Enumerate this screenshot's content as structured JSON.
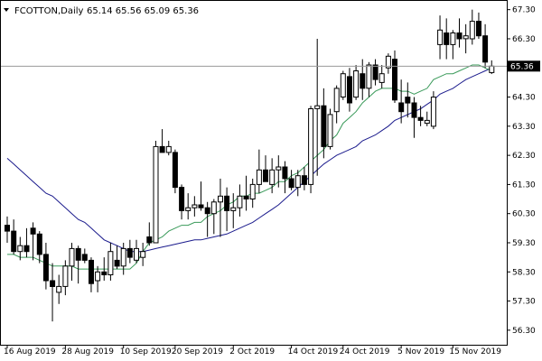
{
  "header": {
    "symbol": "FCOTTON,Daily",
    "ohlc": "65.14 65.56 65.09 65.36"
  },
  "chart_data": {
    "type": "candlestick",
    "symbol": "FCOTTON",
    "timeframe": "Daily",
    "ylim": [
      55.8,
      67.6
    ],
    "y_ticks": [
      {
        "value": 67.3,
        "label": "67.30"
      },
      {
        "value": 66.3,
        "label": "66.30"
      },
      {
        "value": 64.3,
        "label": "64.30"
      },
      {
        "value": 63.3,
        "label": "63.30"
      },
      {
        "value": 62.3,
        "label": "62.30"
      },
      {
        "value": 61.3,
        "label": "61.30"
      },
      {
        "value": 60.3,
        "label": "60.30"
      },
      {
        "value": 59.3,
        "label": "59.30"
      },
      {
        "value": 58.3,
        "label": "58.30"
      },
      {
        "value": 57.3,
        "label": "57.30"
      },
      {
        "value": 56.3,
        "label": "56.30"
      }
    ],
    "x_ticks": [
      {
        "index": 0,
        "label": "16 Aug 2019"
      },
      {
        "index": 9,
        "label": "28 Aug 2019"
      },
      {
        "index": 18,
        "label": "10 Sep 2019"
      },
      {
        "index": 26,
        "label": "20 Sep 2019"
      },
      {
        "index": 35,
        "label": "2 Oct 2019"
      },
      {
        "index": 44,
        "label": "14 Oct 2019"
      },
      {
        "index": 52,
        "label": "24 Oct 2019"
      },
      {
        "index": 61,
        "label": "5 Nov 2019"
      },
      {
        "index": 69,
        "label": "15 Nov 2019"
      }
    ],
    "last_price": {
      "value": 65.36,
      "label": "65.36"
    },
    "colors": {
      "bull_body": "#ffffff",
      "bear_body": "#000000",
      "wick": "#000000",
      "ma_fast": "#3a9a5a",
      "ma_slow": "#1a1a8c",
      "price_tag": "#000000"
    },
    "candles": [
      [
        59.9,
        60.2,
        59.3,
        59.7
      ],
      [
        59.7,
        60.1,
        58.9,
        59.0
      ],
      [
        59.0,
        59.5,
        58.7,
        59.2
      ],
      [
        59.2,
        59.8,
        58.8,
        59.0
      ],
      [
        59.8,
        60.0,
        58.7,
        59.6
      ],
      [
        59.6,
        59.7,
        58.6,
        58.9
      ],
      [
        58.9,
        59.3,
        57.7,
        58.0
      ],
      [
        58.0,
        58.6,
        56.6,
        57.8
      ],
      [
        57.6,
        58.2,
        57.2,
        57.8
      ],
      [
        57.8,
        58.7,
        57.5,
        58.5
      ],
      [
        58.5,
        59.3,
        58.0,
        59.1
      ],
      [
        59.1,
        59.2,
        57.9,
        58.7
      ],
      [
        58.9,
        59.1,
        58.6,
        58.7
      ],
      [
        58.7,
        58.8,
        57.6,
        57.9
      ],
      [
        58.0,
        58.5,
        57.6,
        58.3
      ],
      [
        58.3,
        58.8,
        58.0,
        58.2
      ],
      [
        58.2,
        59.3,
        58.0,
        59.0
      ],
      [
        58.7,
        59.2,
        58.4,
        58.5
      ],
      [
        58.5,
        59.3,
        58.2,
        59.1
      ],
      [
        59.1,
        59.4,
        58.6,
        58.8
      ],
      [
        58.7,
        59.4,
        58.6,
        59.1
      ],
      [
        58.8,
        59.3,
        58.5,
        59.0
      ],
      [
        59.5,
        60.0,
        59.2,
        59.3
      ],
      [
        59.3,
        62.8,
        59.3,
        62.6
      ],
      [
        62.6,
        63.2,
        62.4,
        62.4
      ],
      [
        62.4,
        62.8,
        62.3,
        62.6
      ],
      [
        62.4,
        62.5,
        61.0,
        61.2
      ],
      [
        61.2,
        61.3,
        60.1,
        60.4
      ],
      [
        60.4,
        61.0,
        60.1,
        60.5
      ],
      [
        60.5,
        60.9,
        60.2,
        60.6
      ],
      [
        60.6,
        61.4,
        60.4,
        60.5
      ],
      [
        60.5,
        60.7,
        59.5,
        60.3
      ],
      [
        60.3,
        60.8,
        59.6,
        60.7
      ],
      [
        60.7,
        61.5,
        59.5,
        60.9
      ],
      [
        60.9,
        61.2,
        59.7,
        60.4
      ],
      [
        60.4,
        61.0,
        59.8,
        60.5
      ],
      [
        60.5,
        61.3,
        60.2,
        60.9
      ],
      [
        60.9,
        61.6,
        60.4,
        60.8
      ],
      [
        60.8,
        61.5,
        60.5,
        61.3
      ],
      [
        61.3,
        62.5,
        61.0,
        61.8
      ],
      [
        61.8,
        62.3,
        61.4,
        61.4
      ],
      [
        61.3,
        62.2,
        61.0,
        61.8
      ],
      [
        61.8,
        62.3,
        61.2,
        61.9
      ],
      [
        61.9,
        62.1,
        61.0,
        61.5
      ],
      [
        61.5,
        61.8,
        61.1,
        61.2
      ],
      [
        61.2,
        61.8,
        60.9,
        61.6
      ],
      [
        61.6,
        61.9,
        61.1,
        61.3
      ],
      [
        61.3,
        64.0,
        61.0,
        63.9
      ],
      [
        63.9,
        66.3,
        61.6,
        64.0
      ],
      [
        64.0,
        64.6,
        62.2,
        62.6
      ],
      [
        62.6,
        63.9,
        62.5,
        63.7
      ],
      [
        63.8,
        64.7,
        63.4,
        64.6
      ],
      [
        64.3,
        65.2,
        64.2,
        65.1
      ],
      [
        65.0,
        65.3,
        63.8,
        64.1
      ],
      [
        64.3,
        65.4,
        64.2,
        65.2
      ],
      [
        65.1,
        65.6,
        64.2,
        64.6
      ],
      [
        64.6,
        65.5,
        64.3,
        65.4
      ],
      [
        65.4,
        65.6,
        64.7,
        64.9
      ],
      [
        64.8,
        65.4,
        64.6,
        65.1
      ],
      [
        65.3,
        65.8,
        65.1,
        65.7
      ],
      [
        65.6,
        65.9,
        64.1,
        64.2
      ],
      [
        64.1,
        64.9,
        63.4,
        63.8
      ],
      [
        64.3,
        64.8,
        63.6,
        64.1
      ],
      [
        64.1,
        64.3,
        62.9,
        63.6
      ],
      [
        63.6,
        64.0,
        63.3,
        63.5
      ],
      [
        63.4,
        63.8,
        63.3,
        63.5
      ],
      [
        63.3,
        64.5,
        63.2,
        64.3
      ],
      [
        66.1,
        67.1,
        65.6,
        66.6
      ],
      [
        66.5,
        67.0,
        65.6,
        66.1
      ],
      [
        66.1,
        66.6,
        65.6,
        66.5
      ],
      [
        66.5,
        67.0,
        66.0,
        66.3
      ],
      [
        66.3,
        66.8,
        65.8,
        66.4
      ],
      [
        66.3,
        67.3,
        66.1,
        66.9
      ],
      [
        66.9,
        67.2,
        66.3,
        66.4
      ],
      [
        66.4,
        66.8,
        65.3,
        65.5
      ],
      [
        65.14,
        65.56,
        65.09,
        65.36
      ]
    ],
    "ma_fast": [
      58.9,
      58.9,
      58.8,
      58.8,
      58.8,
      58.7,
      58.6,
      58.5,
      58.5,
      58.5,
      58.5,
      58.4,
      58.4,
      58.4,
      58.4,
      58.4,
      58.4,
      58.4,
      58.4,
      58.4,
      58.6,
      59.0,
      59.3,
      59.4,
      59.5,
      59.7,
      59.8,
      59.9,
      59.9,
      60.0,
      60.0,
      60.2,
      60.3,
      60.4,
      60.6,
      60.7,
      60.9,
      60.9,
      61.0,
      61.0,
      61.1,
      61.2,
      61.4,
      61.4,
      61.6,
      61.7,
      61.9,
      62.1,
      62.3,
      62.5,
      62.8,
      63.0,
      63.4,
      63.6,
      63.8,
      64.1,
      64.3,
      64.5,
      64.6,
      64.6,
      64.6,
      64.5,
      64.5,
      64.4,
      64.5,
      64.6,
      64.9,
      65.0,
      65.1,
      65.1,
      65.2,
      65.3,
      65.4,
      65.4,
      65.3,
      65.2
    ],
    "ma_slow": [
      62.2,
      62.0,
      61.8,
      61.6,
      61.4,
      61.2,
      61.0,
      60.9,
      60.7,
      60.5,
      60.3,
      60.1,
      60.0,
      59.8,
      59.6,
      59.4,
      59.3,
      59.2,
      59.1,
      59.0,
      59.0,
      59.0,
      59.05,
      59.1,
      59.15,
      59.2,
      59.25,
      59.3,
      59.35,
      59.4,
      59.4,
      59.45,
      59.5,
      59.55,
      59.6,
      59.7,
      59.8,
      59.9,
      60.0,
      60.15,
      60.3,
      60.45,
      60.6,
      60.8,
      61.0,
      61.2,
      61.4,
      61.6,
      61.8,
      62.0,
      62.15,
      62.3,
      62.4,
      62.5,
      62.6,
      62.8,
      62.9,
      63.0,
      63.15,
      63.3,
      63.5,
      63.6,
      63.7,
      63.8,
      63.9,
      64.05,
      64.2,
      64.4,
      64.5,
      64.6,
      64.75,
      64.9,
      65.0,
      65.1,
      65.2,
      65.3
    ]
  }
}
